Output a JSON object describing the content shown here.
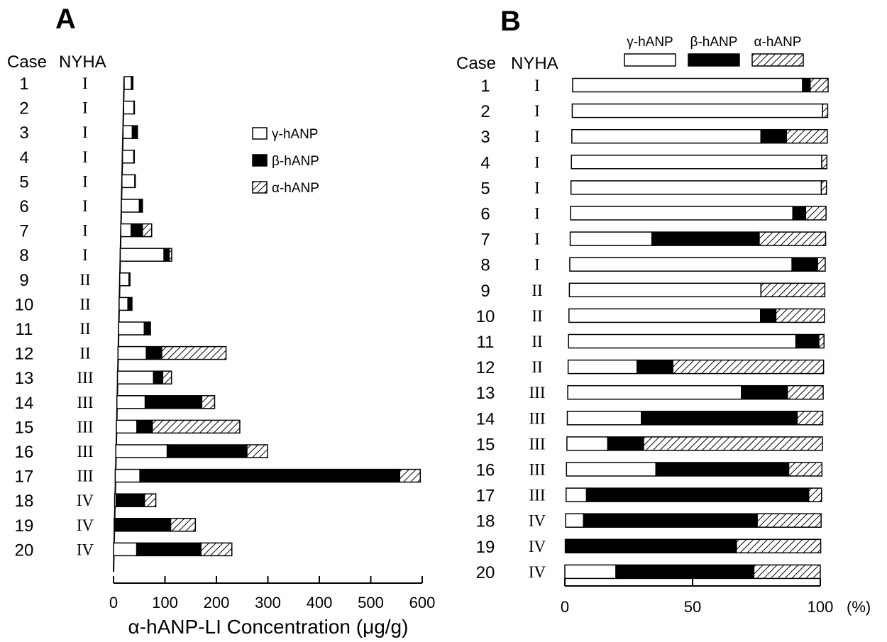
{
  "colors": {
    "gamma": "#ffffff",
    "beta": "#000000",
    "alpha": "hatch"
  },
  "chart_data": [
    {
      "panel": "A",
      "type": "bar",
      "orientation": "horizontal",
      "stacked": true,
      "column_headers": {
        "case": "Case",
        "nyha": "NYHA"
      },
      "categories": [
        "1",
        "2",
        "3",
        "4",
        "5",
        "6",
        "7",
        "8",
        "9",
        "10",
        "11",
        "12",
        "13",
        "14",
        "15",
        "16",
        "17",
        "18",
        "19",
        "20"
      ],
      "nyha": [
        "I",
        "I",
        "I",
        "I",
        "I",
        "I",
        "I",
        "I",
        "II",
        "II",
        "II",
        "II",
        "III",
        "III",
        "III",
        "III",
        "III",
        "IV",
        "IV",
        "IV"
      ],
      "series": [
        {
          "name": "γ-hANP",
          "values": [
            14,
            20,
            18,
            22,
            25,
            35,
            20,
            85,
            18,
            17,
            50,
            55,
            70,
            55,
            40,
            100,
            48,
            3,
            0,
            45
          ]
        },
        {
          "name": "β-hANP",
          "values": [
            2,
            0,
            8,
            0,
            0,
            5,
            22,
            10,
            0,
            7,
            10,
            30,
            18,
            110,
            30,
            155,
            505,
            55,
            110,
            125
          ]
        },
        {
          "name": "α-hANP",
          "values": [
            1,
            1,
            2,
            1,
            1,
            1,
            18,
            5,
            2,
            1,
            2,
            125,
            17,
            25,
            170,
            40,
            40,
            22,
            48,
            60
          ]
        }
      ],
      "xlabel": "α-hANP-LI Concentration (μg/g)",
      "ticks": [
        "0",
        "100",
        "200",
        "300",
        "400",
        "500",
        "600"
      ],
      "xlim": [
        0,
        600
      ],
      "legend": {
        "position": "upper-right",
        "items": [
          "γ-hANP",
          "β-hANP",
          "α-hANP"
        ]
      }
    },
    {
      "panel": "B",
      "type": "bar",
      "orientation": "horizontal",
      "stacked": true,
      "normalized": true,
      "column_headers": {
        "case": "Case",
        "nyha": "NYHA"
      },
      "categories": [
        "1",
        "2",
        "3",
        "4",
        "5",
        "6",
        "7",
        "8",
        "9",
        "10",
        "11",
        "12",
        "13",
        "14",
        "15",
        "16",
        "17",
        "18",
        "19",
        "20"
      ],
      "nyha": [
        "I",
        "I",
        "I",
        "I",
        "I",
        "I",
        "I",
        "I",
        "II",
        "II",
        "II",
        "II",
        "III",
        "III",
        "III",
        "III",
        "III",
        "IV",
        "IV",
        "IV"
      ],
      "series": [
        {
          "name": "γ-hANP",
          "values": [
            90,
            98,
            74,
            98,
            98,
            87,
            32,
            87,
            75,
            75,
            89,
            27,
            68,
            29,
            16,
            35,
            8,
            7,
            0,
            20
          ]
        },
        {
          "name": "β-hANP",
          "values": [
            3,
            0,
            10,
            0,
            0,
            5,
            42,
            10,
            0,
            6,
            9,
            14,
            18,
            61,
            14,
            52,
            87,
            68,
            67,
            54
          ]
        },
        {
          "name": "α-hANP",
          "values": [
            7,
            2,
            16,
            2,
            2,
            8,
            26,
            3,
            25,
            19,
            2,
            59,
            14,
            10,
            70,
            13,
            5,
            25,
            33,
            26
          ]
        }
      ],
      "ticks": [
        "0",
        "50",
        "100"
      ],
      "unit": "(%)",
      "xlim": [
        0,
        100
      ],
      "legend": {
        "position": "top",
        "items": [
          "γ-hANP",
          "β-hANP",
          "α-hANP"
        ]
      }
    }
  ]
}
